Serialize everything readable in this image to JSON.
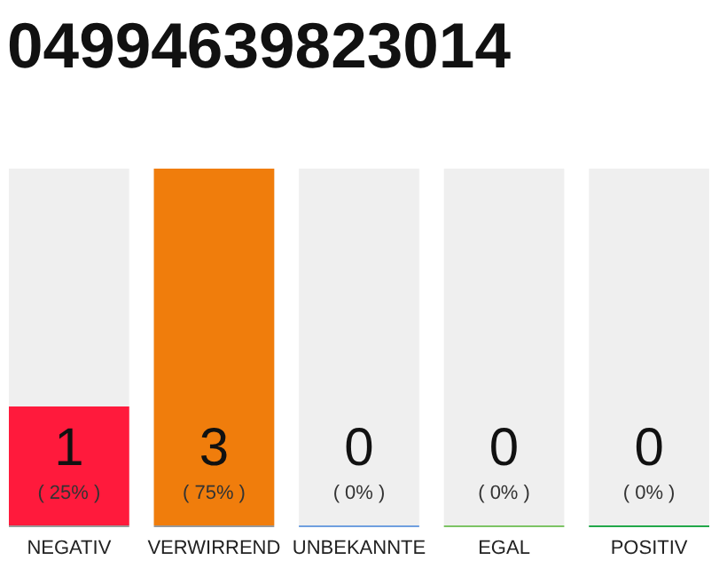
{
  "chart_data": {
    "type": "bar",
    "title": "04994639823014",
    "categories": [
      "NEGATIV",
      "VERWIRREND",
      "UNBEKANNTE",
      "EGAL",
      "POSITIV"
    ],
    "values": [
      1,
      3,
      0,
      0,
      0
    ],
    "colors": [
      "#ff1a3c",
      "#f07d0c",
      "#6f9fdf",
      "#7cc464",
      "#22a84a"
    ],
    "ylim": [
      0,
      3
    ],
    "value_labels": [
      "1 ( 25% )",
      "3 ( 75% )",
      "0 ( 0% )",
      "0 ( 0% )",
      "0 ( 0% )"
    ]
  }
}
